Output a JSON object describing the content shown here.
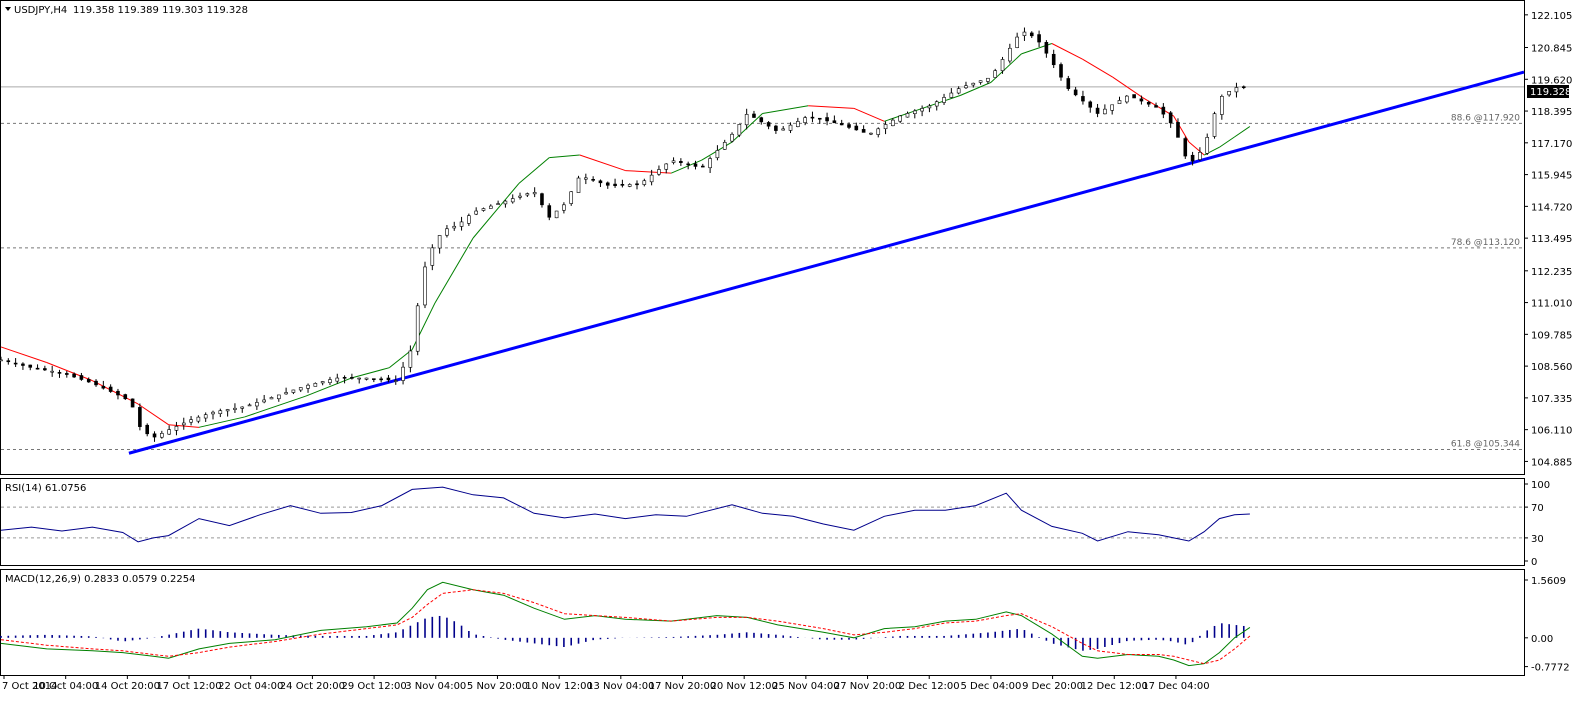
{
  "chart_data": {
    "type": "candlestick",
    "symbol_label": "USDJPY,H4",
    "ohlc_label": "119.358 119.389 119.303 119.328",
    "current_price": 119.328,
    "current_price_label": "119.328",
    "price_axis": {
      "range": [
        104.4,
        122.6
      ],
      "ticks": [
        "122.105",
        "120.845",
        "119.620",
        "118.395",
        "117.170",
        "115.945",
        "114.720",
        "113.495",
        "112.235",
        "111.010",
        "109.785",
        "108.560",
        "107.335",
        "106.110",
        "104.885"
      ]
    },
    "fib_levels": [
      {
        "value": 117.92,
        "label": "88.6 @117.920"
      },
      {
        "value": 113.12,
        "label": "78.6 @113.120"
      },
      {
        "value": 105.344,
        "label": "61.8 @105.344"
      }
    ],
    "trendline": {
      "start": [
        0.084,
        105.2
      ],
      "end": [
        1.0,
        119.9
      ],
      "color": "#0000ff"
    },
    "price_curve": [
      [
        0.0,
        108.8
      ],
      [
        0.02,
        108.5
      ],
      [
        0.04,
        108.3
      ],
      [
        0.06,
        107.9
      ],
      [
        0.075,
        107.5
      ],
      [
        0.085,
        107.2
      ],
      [
        0.092,
        106.1
      ],
      [
        0.1,
        105.8
      ],
      [
        0.11,
        106.1
      ],
      [
        0.125,
        106.5
      ],
      [
        0.14,
        106.8
      ],
      [
        0.16,
        107.0
      ],
      [
        0.18,
        107.4
      ],
      [
        0.2,
        107.8
      ],
      [
        0.22,
        108.1
      ],
      [
        0.24,
        108.1
      ],
      [
        0.26,
        108.0
      ],
      [
        0.27,
        109.3
      ],
      [
        0.275,
        111.5
      ],
      [
        0.28,
        112.8
      ],
      [
        0.29,
        113.8
      ],
      [
        0.3,
        114.0
      ],
      [
        0.31,
        114.5
      ],
      [
        0.33,
        114.9
      ],
      [
        0.35,
        115.3
      ],
      [
        0.36,
        114.3
      ],
      [
        0.37,
        114.8
      ],
      [
        0.38,
        115.9
      ],
      [
        0.4,
        115.5
      ],
      [
        0.42,
        115.6
      ],
      [
        0.44,
        116.5
      ],
      [
        0.46,
        116.2
      ],
      [
        0.48,
        117.5
      ],
      [
        0.49,
        118.3
      ],
      [
        0.51,
        117.6
      ],
      [
        0.53,
        118.2
      ],
      [
        0.55,
        117.9
      ],
      [
        0.57,
        117.5
      ],
      [
        0.59,
        118.2
      ],
      [
        0.61,
        118.6
      ],
      [
        0.63,
        119.3
      ],
      [
        0.65,
        119.7
      ],
      [
        0.67,
        121.5
      ],
      [
        0.68,
        121.2
      ],
      [
        0.69,
        120.3
      ],
      [
        0.7,
        119.3
      ],
      [
        0.72,
        118.3
      ],
      [
        0.74,
        119.0
      ],
      [
        0.76,
        118.5
      ],
      [
        0.77,
        117.8
      ],
      [
        0.78,
        116.3
      ],
      [
        0.79,
        117.0
      ],
      [
        0.8,
        118.9
      ],
      [
        0.81,
        119.3
      ],
      [
        0.82,
        119.328
      ]
    ],
    "ma_curve": [
      [
        0.0,
        109.3
      ],
      [
        0.03,
        108.7
      ],
      [
        0.06,
        108.0
      ],
      [
        0.09,
        107.1
      ],
      [
        0.11,
        106.3
      ],
      [
        0.13,
        106.2
      ],
      [
        0.16,
        106.6
      ],
      [
        0.2,
        107.4
      ],
      [
        0.23,
        108.1
      ],
      [
        0.255,
        108.5
      ],
      [
        0.27,
        109.2
      ],
      [
        0.285,
        111.0
      ],
      [
        0.31,
        113.5
      ],
      [
        0.34,
        115.6
      ],
      [
        0.36,
        116.6
      ],
      [
        0.38,
        116.7
      ],
      [
        0.41,
        116.1
      ],
      [
        0.44,
        116.0
      ],
      [
        0.46,
        116.5
      ],
      [
        0.48,
        117.2
      ],
      [
        0.5,
        118.3
      ],
      [
        0.53,
        118.6
      ],
      [
        0.56,
        118.5
      ],
      [
        0.58,
        118.0
      ],
      [
        0.6,
        118.4
      ],
      [
        0.63,
        119.0
      ],
      [
        0.65,
        119.5
      ],
      [
        0.67,
        120.6
      ],
      [
        0.69,
        121.0
      ],
      [
        0.71,
        120.4
      ],
      [
        0.73,
        119.7
      ],
      [
        0.75,
        118.9
      ],
      [
        0.77,
        118.2
      ],
      [
        0.78,
        117.2
      ],
      [
        0.79,
        116.7
      ],
      [
        0.8,
        117.0
      ],
      [
        0.81,
        117.4
      ],
      [
        0.82,
        117.8
      ]
    ],
    "rsi": {
      "label": "RSI(14) 61.0756",
      "ticks": [
        "100",
        "70",
        "30",
        "0"
      ],
      "levels": [
        70,
        30
      ],
      "values": [
        [
          0.0,
          40
        ],
        [
          0.02,
          44
        ],
        [
          0.04,
          39
        ],
        [
          0.06,
          44
        ],
        [
          0.08,
          37
        ],
        [
          0.09,
          25
        ],
        [
          0.1,
          30
        ],
        [
          0.11,
          33
        ],
        [
          0.13,
          55
        ],
        [
          0.15,
          46
        ],
        [
          0.17,
          60
        ],
        [
          0.19,
          72
        ],
        [
          0.21,
          62
        ],
        [
          0.23,
          63
        ],
        [
          0.25,
          72
        ],
        [
          0.27,
          93
        ],
        [
          0.29,
          96
        ],
        [
          0.31,
          86
        ],
        [
          0.33,
          82
        ],
        [
          0.35,
          62
        ],
        [
          0.37,
          56
        ],
        [
          0.39,
          61
        ],
        [
          0.41,
          55
        ],
        [
          0.43,
          60
        ],
        [
          0.45,
          58
        ],
        [
          0.48,
          73
        ],
        [
          0.5,
          62
        ],
        [
          0.52,
          58
        ],
        [
          0.54,
          48
        ],
        [
          0.56,
          40
        ],
        [
          0.58,
          58
        ],
        [
          0.6,
          66
        ],
        [
          0.62,
          66
        ],
        [
          0.64,
          72
        ],
        [
          0.66,
          88
        ],
        [
          0.67,
          66
        ],
        [
          0.69,
          45
        ],
        [
          0.71,
          36
        ],
        [
          0.72,
          26
        ],
        [
          0.74,
          38
        ],
        [
          0.76,
          34
        ],
        [
          0.77,
          30
        ],
        [
          0.78,
          26
        ],
        [
          0.79,
          38
        ],
        [
          0.8,
          55
        ],
        [
          0.81,
          60
        ],
        [
          0.82,
          61
        ]
      ]
    },
    "macd": {
      "label": "MACD(12,26,9) 0.2833 0.0579 0.2254",
      "ticks": [
        "1.5609",
        "0.00",
        "-0.7772"
      ],
      "range": [
        -0.95,
        1.75
      ],
      "histogram": [
        [
          0.0,
          0.05
        ],
        [
          0.03,
          0.08
        ],
        [
          0.06,
          0.04
        ],
        [
          0.08,
          -0.1
        ],
        [
          0.1,
          0.0
        ],
        [
          0.13,
          0.25
        ],
        [
          0.15,
          0.15
        ],
        [
          0.18,
          0.08
        ],
        [
          0.21,
          0.05
        ],
        [
          0.24,
          0.05
        ],
        [
          0.26,
          0.15
        ],
        [
          0.28,
          0.55
        ],
        [
          0.29,
          0.6
        ],
        [
          0.3,
          0.4
        ],
        [
          0.31,
          0.1
        ],
        [
          0.33,
          -0.05
        ],
        [
          0.35,
          -0.15
        ],
        [
          0.37,
          -0.25
        ],
        [
          0.39,
          -0.05
        ],
        [
          0.41,
          0.0
        ],
        [
          0.44,
          0.02
        ],
        [
          0.47,
          0.08
        ],
        [
          0.49,
          0.15
        ],
        [
          0.51,
          0.08
        ],
        [
          0.54,
          -0.05
        ],
        [
          0.56,
          -0.05
        ],
        [
          0.59,
          0.05
        ],
        [
          0.62,
          0.05
        ],
        [
          0.65,
          0.15
        ],
        [
          0.67,
          0.25
        ],
        [
          0.69,
          -0.15
        ],
        [
          0.71,
          -0.35
        ],
        [
          0.72,
          -0.3
        ],
        [
          0.74,
          -0.08
        ],
        [
          0.76,
          -0.05
        ],
        [
          0.77,
          -0.1
        ],
        [
          0.78,
          -0.2
        ],
        [
          0.79,
          0.15
        ],
        [
          0.8,
          0.4
        ],
        [
          0.81,
          0.35
        ],
        [
          0.82,
          0.3
        ]
      ],
      "macd_line": [
        [
          0.0,
          -0.15
        ],
        [
          0.03,
          -0.3
        ],
        [
          0.06,
          -0.35
        ],
        [
          0.08,
          -0.4
        ],
        [
          0.1,
          -0.5
        ],
        [
          0.11,
          -0.55
        ],
        [
          0.13,
          -0.3
        ],
        [
          0.15,
          -0.15
        ],
        [
          0.18,
          -0.05
        ],
        [
          0.21,
          0.2
        ],
        [
          0.24,
          0.3
        ],
        [
          0.26,
          0.4
        ],
        [
          0.27,
          0.8
        ],
        [
          0.28,
          1.3
        ],
        [
          0.29,
          1.5
        ],
        [
          0.31,
          1.3
        ],
        [
          0.33,
          1.15
        ],
        [
          0.35,
          0.8
        ],
        [
          0.37,
          0.5
        ],
        [
          0.39,
          0.6
        ],
        [
          0.41,
          0.5
        ],
        [
          0.44,
          0.45
        ],
        [
          0.47,
          0.6
        ],
        [
          0.49,
          0.55
        ],
        [
          0.51,
          0.35
        ],
        [
          0.54,
          0.15
        ],
        [
          0.56,
          0.0
        ],
        [
          0.58,
          0.25
        ],
        [
          0.6,
          0.3
        ],
        [
          0.62,
          0.45
        ],
        [
          0.64,
          0.5
        ],
        [
          0.66,
          0.7
        ],
        [
          0.67,
          0.6
        ],
        [
          0.69,
          0.1
        ],
        [
          0.71,
          -0.5
        ],
        [
          0.72,
          -0.55
        ],
        [
          0.74,
          -0.45
        ],
        [
          0.76,
          -0.5
        ],
        [
          0.77,
          -0.6
        ],
        [
          0.78,
          -0.75
        ],
        [
          0.79,
          -0.7
        ],
        [
          0.8,
          -0.4
        ],
        [
          0.81,
          0.0
        ],
        [
          0.82,
          0.28
        ]
      ],
      "signal_line": [
        [
          0.0,
          -0.05
        ],
        [
          0.03,
          -0.2
        ],
        [
          0.06,
          -0.3
        ],
        [
          0.08,
          -0.35
        ],
        [
          0.1,
          -0.45
        ],
        [
          0.11,
          -0.5
        ],
        [
          0.13,
          -0.4
        ],
        [
          0.15,
          -0.25
        ],
        [
          0.18,
          -0.1
        ],
        [
          0.21,
          0.1
        ],
        [
          0.24,
          0.25
        ],
        [
          0.26,
          0.35
        ],
        [
          0.27,
          0.55
        ],
        [
          0.28,
          0.9
        ],
        [
          0.29,
          1.2
        ],
        [
          0.31,
          1.3
        ],
        [
          0.33,
          1.2
        ],
        [
          0.35,
          0.95
        ],
        [
          0.37,
          0.65
        ],
        [
          0.39,
          0.6
        ],
        [
          0.41,
          0.55
        ],
        [
          0.44,
          0.45
        ],
        [
          0.47,
          0.55
        ],
        [
          0.49,
          0.55
        ],
        [
          0.51,
          0.45
        ],
        [
          0.54,
          0.25
        ],
        [
          0.56,
          0.08
        ],
        [
          0.58,
          0.15
        ],
        [
          0.6,
          0.25
        ],
        [
          0.62,
          0.4
        ],
        [
          0.64,
          0.45
        ],
        [
          0.66,
          0.6
        ],
        [
          0.67,
          0.65
        ],
        [
          0.69,
          0.3
        ],
        [
          0.71,
          -0.15
        ],
        [
          0.72,
          -0.35
        ],
        [
          0.74,
          -0.45
        ],
        [
          0.76,
          -0.45
        ],
        [
          0.77,
          -0.5
        ],
        [
          0.78,
          -0.6
        ],
        [
          0.79,
          -0.7
        ],
        [
          0.8,
          -0.6
        ],
        [
          0.81,
          -0.3
        ],
        [
          0.82,
          0.05
        ]
      ]
    },
    "x_axis": {
      "ticks": [
        "7 Oct 2014",
        "10 Oct 04:00",
        "14 Oct 20:00",
        "17 Oct 12:00",
        "22 Oct 04:00",
        "24 Oct 20:00",
        "29 Oct 12:00",
        "3 Nov 04:00",
        "5 Nov 20:00",
        "10 Nov 12:00",
        "13 Nov 04:00",
        "17 Nov 20:00",
        "20 Nov 12:00",
        "25 Nov 04:00",
        "27 Nov 20:00",
        "2 Dec 12:00",
        "5 Dec 04:00",
        "9 Dec 20:00",
        "12 Dec 12:00",
        "17 Dec 04:00"
      ]
    },
    "colors": {
      "price": "#000000",
      "ma_up": "#008000",
      "ma_down": "#ff0000",
      "rsi": "#00008b",
      "macd": "#008000",
      "signal": "#ff0000",
      "histogram": "#00008b"
    }
  }
}
